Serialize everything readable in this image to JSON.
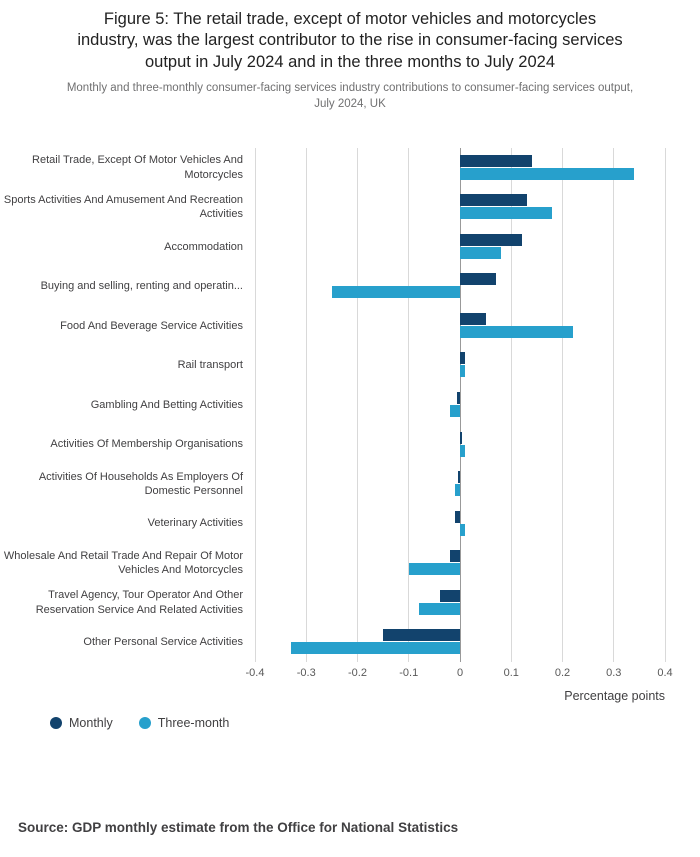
{
  "header": {
    "title": "Figure 5: The retail trade, except of motor vehicles and motorcycles\nindustry, was the largest contributor to the rise in consumer-facing services\noutput in July 2024 and in the three months to July 2024",
    "subtitle": "Monthly and three-monthly consumer-facing services industry contributions to consumer-facing services output,\nJuly 2024, UK"
  },
  "chart_data": {
    "type": "bar",
    "orientation": "horizontal",
    "title": "Figure 5: The retail trade, except of motor vehicles and motorcycles industry, was the largest contributor to the rise in consumer-facing services output in July 2024 and in the three months to July 2024",
    "categories": [
      "Retail Trade, Except Of Motor Vehicles And Motorcycles",
      "Sports Activities And Amusement And Recreation Activities",
      "Accommodation",
      "Buying and selling, renting and operatin...",
      "Food And Beverage Service Activities",
      "Rail transport",
      "Gambling And Betting Activities",
      "Activities Of Membership Organisations",
      "Activities Of Households As Employers Of Domestic Personnel",
      "Veterinary Activities",
      "Wholesale And Retail Trade And Repair Of Motor Vehicles And Motorcycles",
      "Travel Agency, Tour Operator And Other Reservation Service And Related Activities",
      "Other Personal Service Activities"
    ],
    "series": [
      {
        "name": "Monthly",
        "color": "#12436D",
        "values": [
          0.14,
          0.13,
          0.12,
          0.07,
          0.05,
          0.01,
          -0.005,
          0.002,
          -0.004,
          -0.01,
          -0.02,
          -0.04,
          -0.15
        ]
      },
      {
        "name": "Three-month",
        "color": "#27A0CC",
        "values": [
          0.34,
          0.18,
          0.08,
          -0.25,
          0.22,
          0.01,
          -0.02,
          0.01,
          -0.01,
          0.01,
          -0.1,
          -0.08,
          -0.33
        ]
      }
    ],
    "xlabel": "Percentage points",
    "ylabel": "",
    "xlim": [
      -0.4,
      0.4
    ],
    "xticks": [
      -0.4,
      -0.3,
      -0.2,
      -0.1,
      0,
      0.1,
      0.2,
      0.3,
      0.4
    ],
    "xtick_labels": [
      "-0.4",
      "-0.3",
      "-0.2",
      "-0.1",
      "0",
      "0.1",
      "0.2",
      "0.3",
      "0.4"
    ],
    "grid": "vertical",
    "legend_position": "bottom-left"
  },
  "source": {
    "text": "Source: GDP monthly estimate from the Office for National Statistics"
  }
}
